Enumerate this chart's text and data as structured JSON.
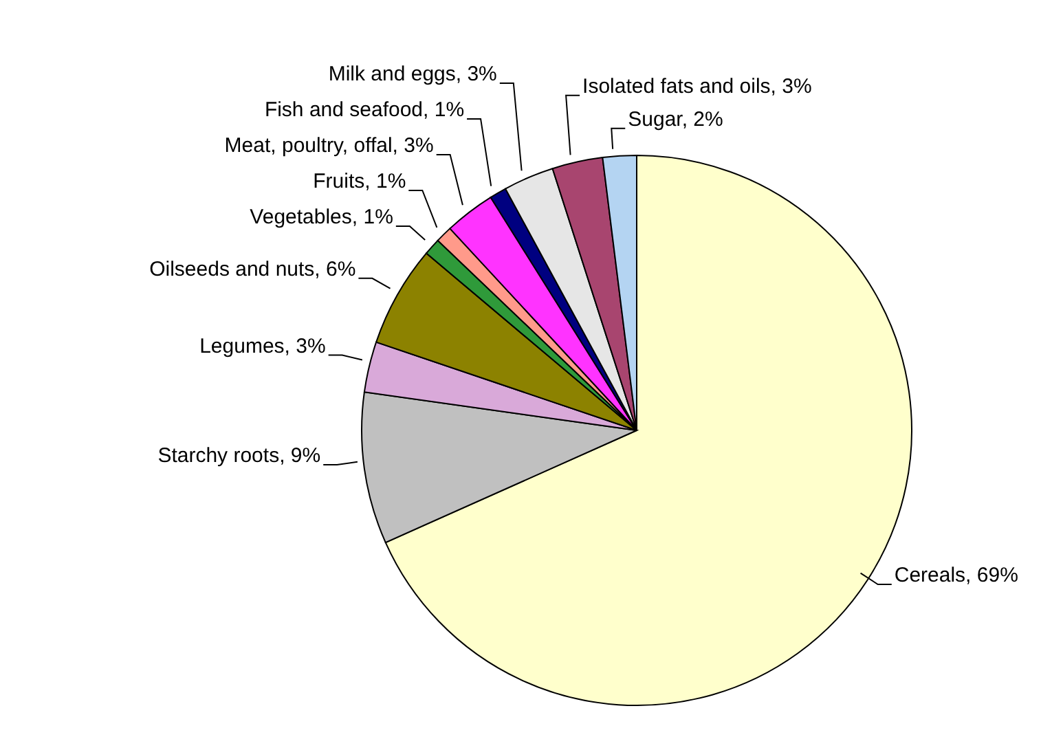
{
  "chart_data": {
    "type": "pie",
    "categories": [
      "Cereals",
      "Starchy roots",
      "Legumes",
      "Oilseeds and nuts",
      "Vegetables",
      "Fruits",
      "Meat, poultry, offal",
      "Fish and  seafood",
      "Milk and eggs",
      "Isolated fats and oils",
      "Sugar"
    ],
    "values": [
      69,
      9,
      3,
      6,
      1,
      1,
      3,
      1,
      3,
      3,
      2
    ],
    "value_labels": [
      "69%",
      "9%",
      "3%",
      "6%",
      "1%",
      "1%",
      "3%",
      "1%",
      "3%",
      "3%",
      "2%"
    ],
    "colors": [
      "#ffffcc",
      "#c0c0c0",
      "#d9a9d9",
      "#8c8200",
      "#2f9a3a",
      "#ff9a8a",
      "#ff33ff",
      "#000080",
      "#e6e6e6",
      "#a8456f",
      "#b4d4f2"
    ]
  }
}
